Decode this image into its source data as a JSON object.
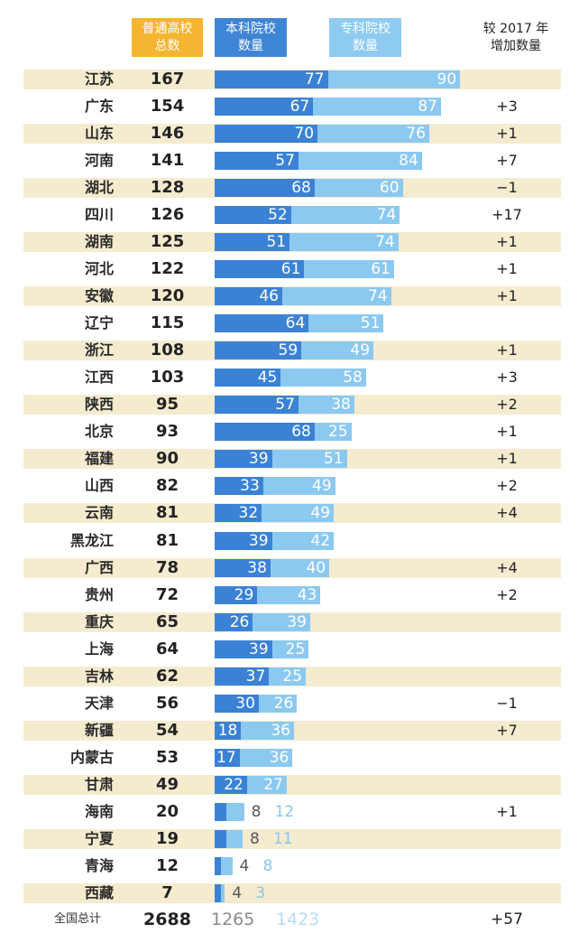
{
  "headers": {
    "total": "普通高校\n总数",
    "ben": "本科院校\n数量",
    "zhuan": "专科院校\n数量",
    "increase": "较 2017 年\n增加数量"
  },
  "chart_data": {
    "type": "bar",
    "stacked": true,
    "orientation": "horizontal",
    "categories": [
      "江苏",
      "广东",
      "山东",
      "河南",
      "湖北",
      "四川",
      "湖南",
      "河北",
      "安徽",
      "辽宁",
      "浙江",
      "江西",
      "陕西",
      "北京",
      "福建",
      "山西",
      "云南",
      "黑龙江",
      "广西",
      "贵州",
      "重庆",
      "上海",
      "吉林",
      "天津",
      "新疆",
      "内蒙古",
      "甘肃",
      "海南",
      "宁夏",
      "青海",
      "西藏"
    ],
    "series": [
      {
        "name": "本科院校数量",
        "color": "#3b82d5",
        "values": [
          77,
          67,
          70,
          57,
          68,
          52,
          51,
          61,
          46,
          64,
          59,
          45,
          57,
          68,
          39,
          33,
          32,
          39,
          38,
          29,
          26,
          39,
          37,
          30,
          18,
          17,
          22,
          8,
          8,
          4,
          4
        ]
      },
      {
        "name": "专科院校数量",
        "color": "#8cc9f0",
        "values": [
          90,
          87,
          76,
          84,
          60,
          74,
          74,
          61,
          74,
          51,
          49,
          58,
          38,
          25,
          51,
          49,
          49,
          42,
          40,
          43,
          39,
          25,
          25,
          26,
          36,
          36,
          27,
          12,
          11,
          8,
          3
        ]
      }
    ],
    "totals": [
      "167",
      "154",
      "146",
      "141",
      "128",
      "126",
      "125",
      "122",
      "120",
      "115",
      "108",
      "103",
      "95",
      "93",
      "90",
      "82",
      "81",
      "81",
      "78",
      "72",
      "65",
      "64",
      "62",
      "56",
      "54",
      "53",
      "49",
      "20",
      "19",
      "12",
      "7"
    ],
    "increase": [
      "",
      "+3",
      "+1",
      "+7",
      "−1",
      "+17",
      "+1",
      "+1",
      "+1",
      "",
      "+1",
      "+3",
      "+2",
      "+1",
      "+1",
      "+2",
      "+4",
      "",
      "+4",
      "+2",
      "",
      "",
      "",
      "−1",
      "+7",
      "",
      "",
      "+1",
      "",
      "",
      ""
    ]
  },
  "footer": {
    "label": "全国总计",
    "total": "2688",
    "ben": "1265",
    "zhuan": "1423",
    "increase": "+57"
  }
}
